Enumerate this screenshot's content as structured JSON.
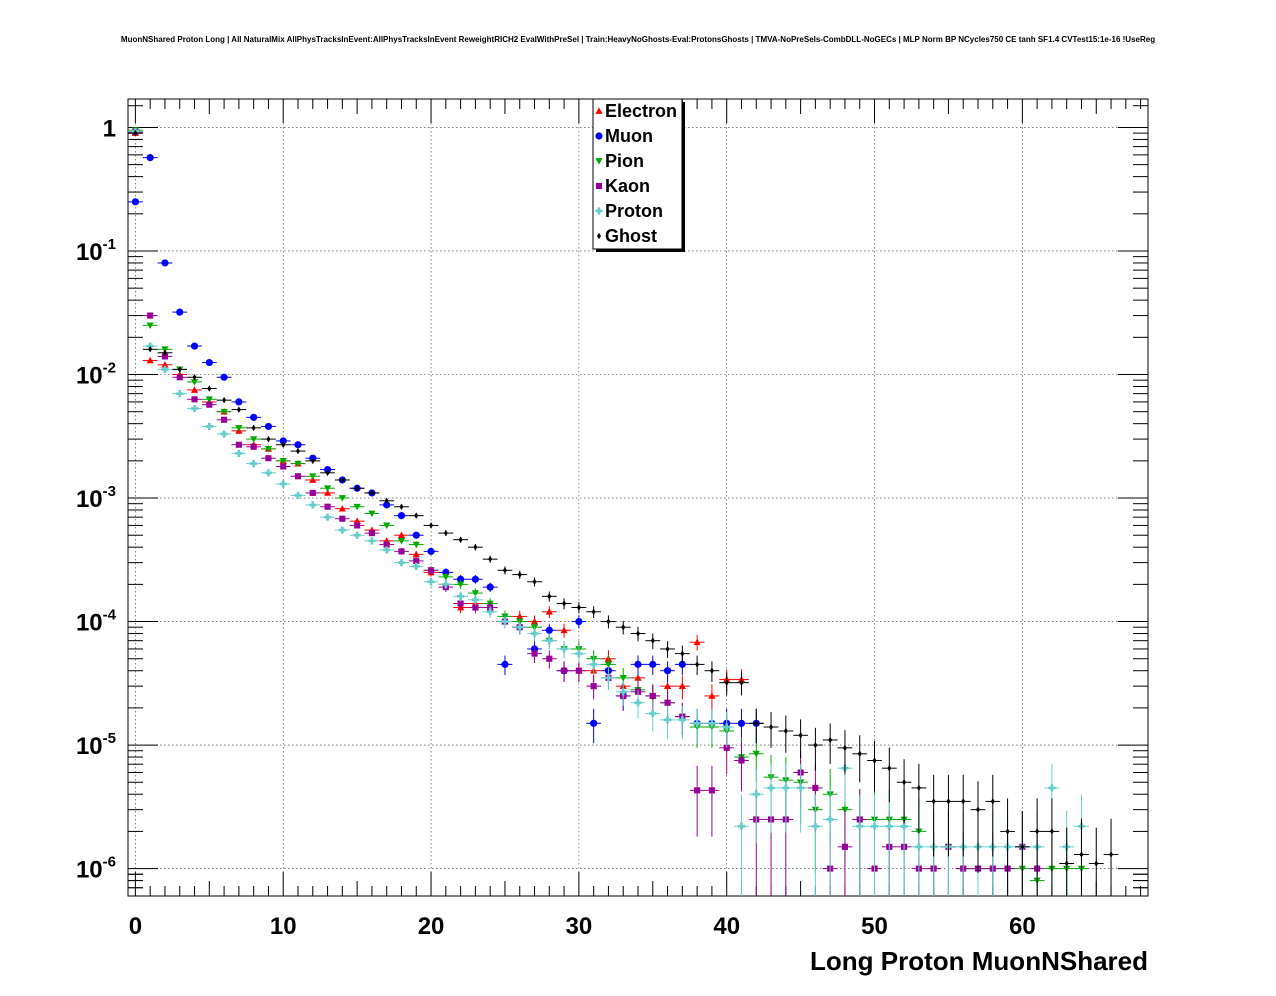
{
  "chart_data": {
    "type": "scatter",
    "title": "MuonNShared Proton Long | All NaturalMix AllPhysTracksInEvent:AllPhysTracksInEvent ReweightRICH2 EvalWithPreSel | Train:HeavyNoGhosts-Eval:ProtonsGhosts | TMVA-NoPreSels-CombDLL-NoGECs | MLP Norm BP NCycles750 CE tanh SF1.4 CVTest15:1e-16 !UseReg",
    "xlabel": "Long Proton MuonNShared",
    "ylabel": "",
    "xlim": [
      -0.5,
      68.5
    ],
    "ylim": [
      6e-07,
      1.7
    ],
    "yscale": "log",
    "grid": true,
    "legend_position": "top-center",
    "x_ticks": [
      "0",
      "10",
      "20",
      "30",
      "40",
      "50",
      "60"
    ],
    "y_ticks": [
      {
        "base": "1",
        "exp": ""
      },
      {
        "base": "10",
        "exp": "-1"
      },
      {
        "base": "10",
        "exp": "-2"
      },
      {
        "base": "10",
        "exp": "-3"
      },
      {
        "base": "10",
        "exp": "-4"
      },
      {
        "base": "10",
        "exp": "-5"
      },
      {
        "base": "10",
        "exp": "-6"
      }
    ],
    "series": [
      {
        "name": "Electron",
        "color": "#ff0000",
        "marker": "triangle-up",
        "x": [
          0,
          1,
          2,
          3,
          4,
          5,
          6,
          7,
          8,
          9,
          10,
          11,
          12,
          13,
          14,
          15,
          16,
          17,
          18,
          19,
          20,
          21,
          22,
          23,
          24,
          25,
          26,
          27,
          28,
          29,
          30,
          31,
          32,
          33,
          34,
          35,
          36,
          37,
          38,
          39,
          40,
          41
        ],
        "y": [
          0.9,
          0.013,
          0.012,
          0.01,
          0.0075,
          0.006,
          0.005,
          0.0035,
          0.0027,
          0.0025,
          0.002,
          0.0019,
          0.0014,
          0.0011,
          0.00082,
          0.00065,
          0.00055,
          0.00045,
          0.0005,
          0.00035,
          0.00025,
          0.0002,
          0.00013,
          0.00014,
          0.00013,
          0.0001,
          0.00011,
          0.0001,
          0.00012,
          8.5e-05,
          4e-05,
          4e-05,
          5e-05,
          3e-05,
          3.5e-05,
          2.5e-05,
          3e-05,
          3e-05,
          6.8e-05,
          2.5e-05,
          3.4e-05,
          3.4e-05
        ]
      },
      {
        "name": "Muon",
        "color": "#0000ff",
        "marker": "circle",
        "x": [
          0,
          1,
          2,
          3,
          4,
          5,
          6,
          7,
          8,
          9,
          10,
          11,
          12,
          13,
          14,
          15,
          16,
          17,
          18,
          19,
          20,
          21,
          22,
          23,
          24,
          25,
          26,
          27,
          28,
          29,
          30,
          31,
          32,
          33,
          34,
          35,
          36,
          37,
          38,
          39,
          40,
          41,
          42
        ],
        "y": [
          0.25,
          0.57,
          0.08,
          0.032,
          0.017,
          0.0125,
          0.0095,
          0.006,
          0.0045,
          0.0038,
          0.0029,
          0.0027,
          0.0021,
          0.0017,
          0.0014,
          0.0012,
          0.0011,
          0.00088,
          0.00072,
          0.0005,
          0.00037,
          0.00025,
          0.00022,
          0.00022,
          0.00019,
          4.5e-05,
          9e-05,
          6e-05,
          8.5e-05,
          4e-05,
          0.0001,
          1.5e-05,
          4e-05,
          2.5e-05,
          4.5e-05,
          4.5e-05,
          4e-05,
          4.5e-05,
          1.5e-05,
          1.5e-05,
          1.5e-05,
          1.5e-05,
          1.5e-05
        ]
      },
      {
        "name": "Pion",
        "color": "#00aa00",
        "marker": "triangle-down",
        "x": [
          0,
          1,
          2,
          3,
          4,
          5,
          6,
          7,
          8,
          9,
          10,
          11,
          12,
          13,
          14,
          15,
          16,
          17,
          18,
          19,
          20,
          21,
          22,
          23,
          24,
          25,
          26,
          27,
          28,
          29,
          30,
          31,
          32,
          33,
          34,
          35,
          36,
          37,
          38,
          39,
          40,
          41,
          42,
          43,
          44,
          45,
          46,
          47,
          48,
          49,
          50,
          51,
          52,
          53,
          54,
          55,
          56,
          57,
          58,
          59,
          60,
          61,
          62,
          63,
          64
        ],
        "y": [
          0.95,
          0.025,
          0.016,
          0.011,
          0.0087,
          0.0063,
          0.005,
          0.0037,
          0.003,
          0.0025,
          0.002,
          0.0019,
          0.0015,
          0.0012,
          0.001,
          0.00085,
          0.00075,
          0.0006,
          0.00045,
          0.00042,
          0.00026,
          0.00023,
          0.0002,
          0.00017,
          0.00014,
          0.00011,
          0.0001,
          9e-05,
          7e-05,
          6e-05,
          6e-05,
          5e-05,
          4.5e-05,
          3.5e-05,
          2.8e-05,
          2.5e-05,
          2.2e-05,
          1.7e-05,
          1.4e-05,
          1.4e-05,
          1.3e-05,
          8e-06,
          8.5e-06,
          5.5e-06,
          5.2e-06,
          5e-06,
          3e-06,
          4e-06,
          3e-06,
          2.5e-06,
          2.5e-06,
          2.5e-06,
          2.5e-06,
          2e-06,
          1e-06,
          1.5e-06,
          1e-06,
          1e-06,
          1e-06,
          1e-06,
          1e-06,
          8e-07,
          1e-06,
          1e-06,
          1e-06
        ]
      },
      {
        "name": "Kaon",
        "color": "#990099",
        "marker": "square",
        "x": [
          0,
          1,
          2,
          3,
          4,
          5,
          6,
          7,
          8,
          9,
          10,
          11,
          12,
          13,
          14,
          15,
          16,
          17,
          18,
          19,
          20,
          21,
          22,
          23,
          24,
          25,
          26,
          27,
          28,
          29,
          30,
          31,
          32,
          33,
          34,
          35,
          36,
          37,
          38,
          39,
          40,
          41,
          42,
          43,
          44,
          45,
          46,
          47,
          48,
          49,
          50,
          51,
          52,
          53,
          54,
          55,
          56,
          57,
          58,
          59,
          60,
          61
        ],
        "y": [
          0.92,
          0.03,
          0.014,
          0.0095,
          0.0063,
          0.0057,
          0.0043,
          0.0027,
          0.0026,
          0.0021,
          0.0018,
          0.0015,
          0.0011,
          0.00085,
          0.00068,
          0.0006,
          0.00052,
          0.00042,
          0.00037,
          0.00031,
          0.00026,
          0.00019,
          0.00014,
          0.00013,
          0.00013,
          0.0001,
          9e-05,
          5.5e-05,
          5e-05,
          4e-05,
          4e-05,
          3e-05,
          3.5e-05,
          2.5e-05,
          2.7e-05,
          2.5e-05,
          2.2e-05,
          1.7e-05,
          4.3e-06,
          4.3e-06,
          9.5e-06,
          7.5e-06,
          2.5e-06,
          2.5e-06,
          2.5e-06,
          6e-06,
          4.5e-06,
          1e-06,
          1.5e-06,
          2.5e-06,
          1e-06,
          1.5e-06,
          1.5e-06,
          1e-06,
          1e-06,
          1.5e-06,
          1e-06,
          1e-06,
          1e-06,
          1e-06,
          1.5e-06,
          1e-06
        ]
      },
      {
        "name": "Proton",
        "color": "#66cccc",
        "marker": "cross",
        "x": [
          0,
          1,
          2,
          3,
          4,
          5,
          6,
          7,
          8,
          9,
          10,
          11,
          12,
          13,
          14,
          15,
          16,
          17,
          18,
          19,
          20,
          21,
          22,
          23,
          24,
          25,
          26,
          27,
          28,
          29,
          30,
          31,
          32,
          33,
          34,
          35,
          36,
          37,
          38,
          39,
          40,
          41,
          42,
          43,
          44,
          45,
          46,
          47,
          48,
          49,
          50,
          51,
          52,
          53,
          54,
          55,
          56,
          57,
          58,
          59,
          60,
          61,
          62,
          63,
          64
        ],
        "y": [
          0.93,
          0.017,
          0.011,
          0.007,
          0.0053,
          0.0038,
          0.0033,
          0.0023,
          0.0019,
          0.0016,
          0.0013,
          0.00105,
          0.00088,
          0.0007,
          0.00055,
          0.0005,
          0.00045,
          0.00038,
          0.0003,
          0.00028,
          0.00021,
          0.0002,
          0.00016,
          0.00015,
          0.00012,
          0.0001,
          9e-05,
          8e-05,
          7e-05,
          6e-05,
          5.5e-05,
          4.5e-05,
          3.5e-05,
          2.7e-05,
          2.2e-05,
          1.8e-05,
          1.6e-05,
          1.6e-05,
          1.5e-05,
          1.5e-05,
          1.4e-05,
          2.2e-06,
          4e-06,
          4.5e-06,
          4.5e-06,
          4.5e-06,
          2.2e-06,
          2.5e-06,
          6.5e-06,
          2.2e-06,
          2.2e-06,
          2.2e-06,
          2.2e-06,
          1.5e-06,
          1.5e-06,
          1.5e-06,
          1.5e-06,
          1.5e-06,
          1.5e-06,
          1.5e-06,
          1.5e-06,
          1.5e-06,
          4.5e-06,
          1.5e-06,
          2.2e-06
        ]
      },
      {
        "name": "Ghost",
        "color": "#000000",
        "marker": "diamond",
        "x": [
          0,
          1,
          2,
          3,
          4,
          5,
          6,
          7,
          8,
          9,
          10,
          11,
          12,
          13,
          14,
          15,
          16,
          17,
          18,
          19,
          20,
          21,
          22,
          23,
          24,
          25,
          26,
          27,
          28,
          29,
          30,
          31,
          32,
          33,
          34,
          35,
          36,
          37,
          38,
          39,
          40,
          41,
          42,
          43,
          44,
          45,
          46,
          47,
          48,
          49,
          50,
          51,
          52,
          53,
          54,
          55,
          56,
          57,
          58,
          59,
          60,
          61,
          62,
          63,
          64,
          65,
          66
        ],
        "y": [
          0.9,
          0.016,
          0.015,
          0.011,
          0.0095,
          0.0077,
          0.0062,
          0.0052,
          0.0037,
          0.003,
          0.0027,
          0.0024,
          0.002,
          0.0016,
          0.0014,
          0.0012,
          0.0011,
          0.00095,
          0.00085,
          0.00072,
          0.0006,
          0.00052,
          0.00046,
          0.0004,
          0.00032,
          0.00026,
          0.00024,
          0.00021,
          0.00016,
          0.00014,
          0.00013,
          0.00012,
          0.0001,
          9e-05,
          8e-05,
          7e-05,
          6e-05,
          5.5e-05,
          4.5e-05,
          4e-05,
          3.2e-05,
          3.2e-05,
          1.5e-05,
          1.4e-05,
          1.3e-05,
          1.2e-05,
          1e-05,
          1.1e-05,
          9.5e-06,
          8.5e-06,
          7.5e-06,
          6.5e-06,
          5e-06,
          4.5e-06,
          3.5e-06,
          3.5e-06,
          3.5e-06,
          3e-06,
          3.5e-06,
          2e-06,
          1.5e-06,
          2e-06,
          2e-06,
          1.1e-06,
          1.3e-06,
          1.1e-06,
          1.3e-06
        ]
      }
    ]
  }
}
